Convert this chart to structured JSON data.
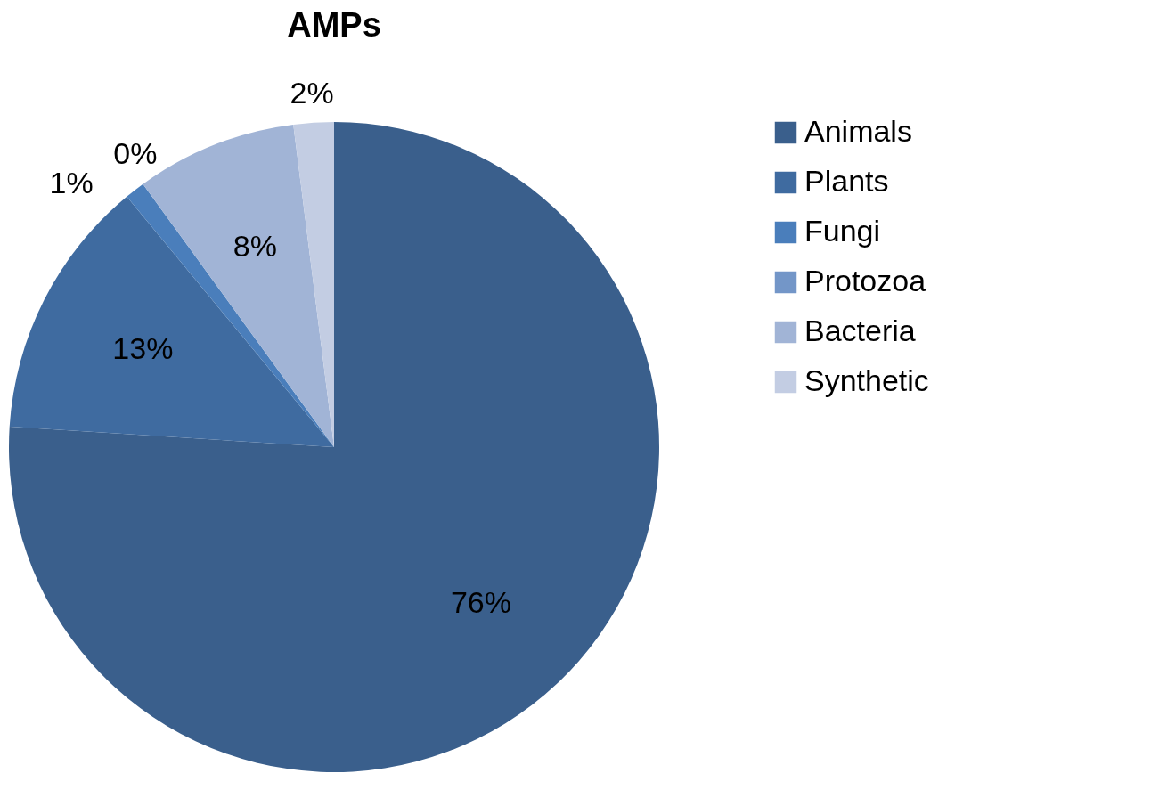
{
  "chart_data": {
    "type": "pie",
    "title": "AMPs",
    "categories": [
      "Animals",
      "Plants",
      "Fungi",
      "Protozoa",
      "Bacteria",
      "Synthetic"
    ],
    "values": [
      76,
      13,
      1,
      0,
      8,
      2
    ],
    "value_labels": [
      "76%",
      "13%",
      "1%",
      "0%",
      "8%",
      "2%"
    ],
    "colors": [
      "#3a5f8c",
      "#3f6ba0",
      "#4a7ebb",
      "#7396c8",
      "#a1b4d6",
      "#c3cde3"
    ],
    "legend": "right"
  }
}
